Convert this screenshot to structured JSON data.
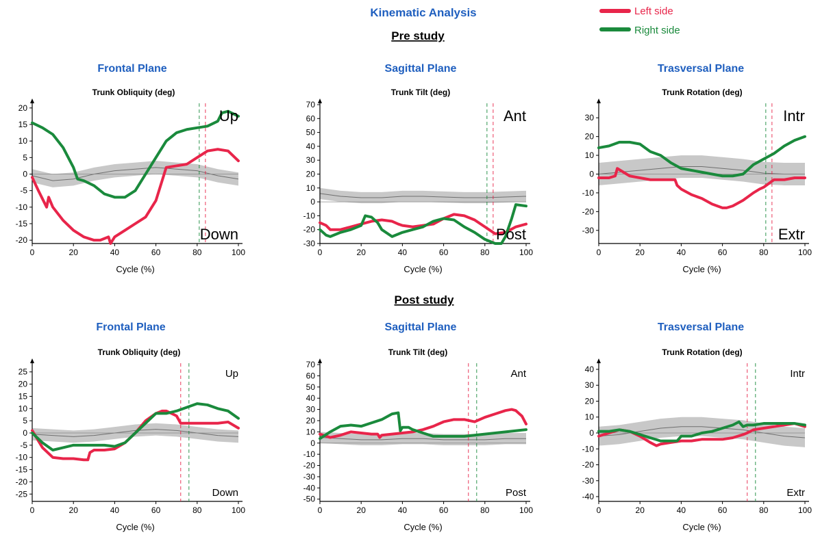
{
  "header": {
    "title": "Kinematic Analysis",
    "pre_label": "Pre study",
    "post_label": "Post study"
  },
  "legend": [
    {
      "label": "Left side",
      "color": "#e8254a"
    },
    {
      "label": "Right side",
      "color": "#1a8a3c"
    }
  ],
  "colors": {
    "left": "#e8254a",
    "right": "#1a8a3c",
    "normal_band": "#c8c8c8",
    "normal_line": "#6e6e6e"
  },
  "chart_data": [
    {
      "type": "line",
      "plane": "Frontal Plane",
      "title": "Trunk Obliquity (deg)",
      "xlabel": "Cycle (%)",
      "ylim": [
        -21,
        21
      ],
      "yticks": [
        -20,
        -15,
        -10,
        -5,
        0,
        5,
        10,
        15,
        20
      ],
      "xlim": [
        0,
        100
      ],
      "xticks": [
        0,
        20,
        40,
        60,
        80,
        100
      ],
      "annotation_top": "Up",
      "annotation_bottom": "Down",
      "toe_off": {
        "right": 81,
        "left": 84
      },
      "series": [
        {
          "name": "Left side",
          "x": [
            0,
            3,
            7,
            8,
            10,
            15,
            20,
            25,
            30,
            33,
            37,
            38,
            40,
            45,
            50,
            55,
            60,
            63,
            65,
            70,
            75,
            80,
            85,
            90,
            95,
            100
          ],
          "y": [
            -1,
            -5,
            -10,
            -7,
            -10,
            -14,
            -17,
            -19,
            -20,
            -20,
            -19,
            -21,
            -19,
            -17,
            -15,
            -13,
            -8,
            -2,
            2,
            2.5,
            3,
            5,
            7,
            7.5,
            7,
            4
          ]
        },
        {
          "name": "Right side",
          "x": [
            0,
            5,
            10,
            15,
            20,
            22,
            25,
            30,
            35,
            40,
            45,
            50,
            55,
            60,
            65,
            70,
            75,
            80,
            85,
            90,
            92,
            95,
            100
          ],
          "y": [
            15.5,
            14,
            12,
            8,
            2,
            -1.5,
            -2,
            -3.5,
            -6,
            -7,
            -7,
            -5,
            0,
            5,
            10,
            12.5,
            13.5,
            14,
            14.5,
            16,
            18.5,
            19,
            17.5
          ]
        },
        {
          "name": "Normal",
          "x": [
            0,
            10,
            20,
            30,
            40,
            50,
            60,
            70,
            80,
            90,
            100
          ],
          "y": [
            -0.5,
            -2,
            -1.5,
            0,
            1,
            1.5,
            2,
            1.5,
            1,
            -0.5,
            -1.5
          ],
          "band": 2
        }
      ]
    },
    {
      "type": "line",
      "plane": "Sagittal Plane",
      "title": "Trunk Tilt (deg)",
      "xlabel": "Cycle (%)",
      "ylim": [
        -30,
        70
      ],
      "yticks": [
        -30,
        -20,
        -10,
        0,
        10,
        20,
        30,
        40,
        50,
        60,
        70
      ],
      "xlim": [
        0,
        100
      ],
      "xticks": [
        0,
        20,
        40,
        60,
        80,
        100
      ],
      "annotation_top": "Ant",
      "annotation_bottom": "Post",
      "toe_off": {
        "right": 81,
        "left": 84
      },
      "series": [
        {
          "name": "Left side",
          "x": [
            0,
            3,
            5,
            8,
            10,
            15,
            20,
            25,
            30,
            35,
            38,
            40,
            45,
            50,
            55,
            60,
            65,
            70,
            75,
            80,
            85,
            90,
            95,
            100
          ],
          "y": [
            -15,
            -17,
            -20,
            -20,
            -20,
            -18,
            -16,
            -14,
            -13,
            -14,
            -16,
            -17,
            -18,
            -17,
            -16,
            -12,
            -9,
            -10,
            -13,
            -18,
            -23,
            -22,
            -18,
            -16
          ]
        },
        {
          "name": "Right side",
          "x": [
            0,
            3,
            5,
            10,
            15,
            20,
            22,
            25,
            28,
            30,
            35,
            40,
            45,
            50,
            55,
            60,
            65,
            70,
            75,
            80,
            85,
            88,
            90,
            93,
            95,
            100
          ],
          "y": [
            -20,
            -24,
            -25,
            -22,
            -20,
            -17,
            -10,
            -11,
            -15,
            -20,
            -25,
            -22,
            -20,
            -18,
            -14,
            -12,
            -13,
            -18,
            -22,
            -27,
            -33,
            -32,
            -25,
            -12,
            -2,
            -3
          ]
        },
        {
          "name": "Normal",
          "x": [
            0,
            10,
            20,
            30,
            40,
            50,
            60,
            70,
            80,
            90,
            100
          ],
          "y": [
            6,
            4,
            3,
            3,
            4,
            4,
            3.5,
            3,
            3,
            3.5,
            4
          ],
          "band": 4
        }
      ]
    },
    {
      "type": "line",
      "plane": "Trasversal Plane",
      "title": "Trunk Rotation (deg)",
      "xlabel": "Cycle (%)",
      "ylim": [
        -37,
        37
      ],
      "yticks": [
        -30,
        -20,
        -10,
        0,
        10,
        20,
        30
      ],
      "xlim": [
        0,
        100
      ],
      "xticks": [
        0,
        20,
        40,
        60,
        80,
        100
      ],
      "annotation_top": "Intr",
      "annotation_bottom": "Extr",
      "toe_off": {
        "right": 81,
        "left": 84
      },
      "series": [
        {
          "name": "Left side",
          "x": [
            0,
            5,
            8,
            9,
            12,
            15,
            20,
            25,
            30,
            35,
            37,
            38,
            40,
            45,
            50,
            55,
            60,
            62,
            65,
            70,
            75,
            78,
            80,
            85,
            90,
            95,
            100
          ],
          "y": [
            -2,
            -2,
            -1,
            3,
            1,
            -1,
            -2,
            -3,
            -3,
            -3,
            -3,
            -6,
            -8,
            -11,
            -13,
            -16,
            -18,
            -18,
            -17,
            -14,
            -10,
            -8,
            -7,
            -3,
            -3,
            -2,
            -2
          ]
        },
        {
          "name": "Right side",
          "x": [
            0,
            5,
            10,
            15,
            20,
            25,
            30,
            35,
            40,
            45,
            50,
            55,
            60,
            65,
            70,
            75,
            80,
            85,
            90,
            95,
            100
          ],
          "y": [
            14,
            15,
            17,
            17,
            16,
            12,
            10,
            6,
            3,
            2,
            1,
            0,
            -1,
            -1,
            0,
            5,
            8,
            11,
            15,
            18,
            20
          ]
        },
        {
          "name": "Normal",
          "x": [
            0,
            10,
            20,
            30,
            40,
            50,
            60,
            70,
            80,
            90,
            100
          ],
          "y": [
            0,
            1,
            2,
            3,
            4,
            4,
            3,
            2,
            0.5,
            0,
            0
          ],
          "band": 6
        }
      ]
    },
    {
      "type": "line",
      "plane": "Frontal Plane",
      "title": "Trunk Obliquity (deg)",
      "xlabel": "Cycle (%)",
      "ylim": [
        -28,
        28
      ],
      "yticks": [
        -25,
        -20,
        -15,
        -10,
        -5,
        0,
        5,
        10,
        15,
        20,
        25
      ],
      "xlim": [
        0,
        100
      ],
      "xticks": [
        0,
        20,
        40,
        60,
        80,
        100
      ],
      "annotation_top": "Up",
      "annotation_bottom": "Down",
      "toe_off": {
        "left": 72,
        "right": 76
      },
      "series": [
        {
          "name": "Left side",
          "x": [
            0,
            5,
            10,
            15,
            20,
            25,
            27,
            28,
            30,
            35,
            40,
            45,
            50,
            55,
            60,
            63,
            65,
            70,
            72,
            75,
            80,
            85,
            90,
            95,
            100
          ],
          "y": [
            1,
            -6,
            -10,
            -10.5,
            -10.5,
            -11,
            -11,
            -8,
            -7,
            -7,
            -6.5,
            -4,
            0,
            5,
            8,
            9,
            9,
            7,
            4,
            4,
            4,
            4,
            4,
            4.5,
            2
          ]
        },
        {
          "name": "Right side",
          "x": [
            0,
            5,
            10,
            15,
            20,
            25,
            30,
            35,
            40,
            45,
            50,
            55,
            60,
            65,
            70,
            75,
            80,
            85,
            90,
            95,
            100
          ],
          "y": [
            0,
            -4,
            -7,
            -6,
            -5,
            -5,
            -5,
            -5,
            -5.5,
            -4,
            0,
            4,
            8,
            8,
            9,
            10.5,
            12,
            11.5,
            10,
            9,
            6
          ]
        },
        {
          "name": "Normal",
          "x": [
            0,
            10,
            20,
            30,
            40,
            50,
            60,
            70,
            80,
            90,
            100
          ],
          "y": [
            -0.5,
            -1,
            -1.5,
            -1,
            0,
            1,
            1.5,
            1,
            0,
            -1,
            -1.5
          ],
          "band": 2.5
        }
      ]
    },
    {
      "type": "line",
      "plane": "Sagittal Plane",
      "title": "Trunk Tilt (deg)",
      "xlabel": "Cycle (%)",
      "ylim": [
        -52,
        70
      ],
      "yticks": [
        -50,
        -40,
        -30,
        -20,
        -10,
        0,
        10,
        20,
        30,
        40,
        50,
        60,
        70
      ],
      "xlim": [
        0,
        100
      ],
      "xticks": [
        0,
        20,
        40,
        60,
        80,
        100
      ],
      "annotation_top": "Ant",
      "annotation_bottom": "Post",
      "toe_off": {
        "left": 72,
        "right": 76
      },
      "series": [
        {
          "name": "Left side",
          "x": [
            0,
            5,
            10,
            15,
            20,
            25,
            28,
            29,
            30,
            35,
            40,
            45,
            50,
            55,
            60,
            65,
            70,
            75,
            80,
            85,
            90,
            93,
            95,
            98,
            100
          ],
          "y": [
            8,
            5,
            7,
            10,
            9,
            8,
            8,
            5,
            7,
            8,
            9,
            10,
            12,
            15,
            19,
            21,
            21,
            19,
            23,
            26,
            29,
            30,
            29,
            24,
            17
          ]
        },
        {
          "name": "Right side",
          "x": [
            0,
            5,
            10,
            15,
            20,
            25,
            30,
            35,
            38,
            39,
            40,
            43,
            45,
            50,
            55,
            60,
            65,
            70,
            75,
            80,
            85,
            90,
            95,
            100
          ],
          "y": [
            4,
            10,
            15,
            16,
            15,
            18,
            21,
            26,
            27,
            11,
            14,
            14,
            12,
            9,
            6,
            6,
            6,
            6,
            7,
            8,
            9,
            10,
            11,
            12
          ]
        },
        {
          "name": "Normal",
          "x": [
            0,
            10,
            20,
            30,
            40,
            50,
            60,
            70,
            80,
            90,
            100
          ],
          "y": [
            5,
            4,
            3,
            3,
            4,
            4,
            3,
            3,
            3,
            4,
            4
          ],
          "band": 5
        }
      ]
    },
    {
      "type": "line",
      "plane": "Trasversal Plane",
      "title": "Trunk Rotation (deg)",
      "xlabel": "Cycle (%)",
      "ylim": [
        -43,
        43
      ],
      "yticks": [
        -40,
        -30,
        -20,
        -10,
        0,
        10,
        20,
        30,
        40
      ],
      "xlim": [
        0,
        100
      ],
      "xticks": [
        0,
        20,
        40,
        60,
        80,
        100
      ],
      "annotation_top": "Intr",
      "annotation_bottom": "Extr",
      "toe_off": {
        "left": 72,
        "right": 76
      },
      "series": [
        {
          "name": "Left side",
          "x": [
            0,
            5,
            10,
            15,
            20,
            25,
            28,
            30,
            35,
            40,
            45,
            50,
            55,
            60,
            65,
            70,
            72,
            75,
            80,
            85,
            90,
            95,
            100
          ],
          "y": [
            -2,
            0,
            2,
            1,
            -2,
            -6,
            -8,
            -7,
            -6,
            -5,
            -5,
            -4,
            -4,
            -4,
            -3,
            -1,
            0,
            2,
            3,
            4,
            5,
            6,
            4
          ]
        },
        {
          "name": "Right side",
          "x": [
            0,
            5,
            10,
            15,
            20,
            25,
            30,
            35,
            38,
            40,
            45,
            50,
            55,
            60,
            65,
            68,
            70,
            72,
            75,
            80,
            85,
            90,
            95,
            100
          ],
          "y": [
            1,
            1,
            2,
            1,
            -1,
            -3,
            -5,
            -5,
            -5,
            -2,
            -2,
            0,
            1,
            3,
            5,
            7,
            4,
            5,
            5,
            6,
            6,
            6,
            6,
            5
          ]
        },
        {
          "name": "Normal",
          "x": [
            0,
            10,
            20,
            30,
            40,
            50,
            60,
            70,
            80,
            90,
            100
          ],
          "y": [
            -2,
            -1,
            1,
            3,
            4,
            4,
            3,
            2,
            0,
            -2,
            -3
          ],
          "band": 6
        }
      ]
    }
  ]
}
